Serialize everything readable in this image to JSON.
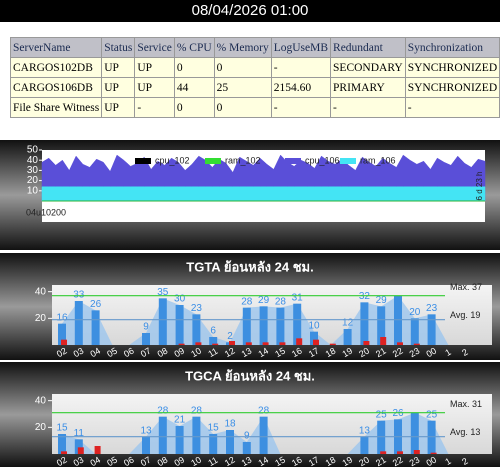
{
  "header": {
    "title": "08/04/2026 01:00"
  },
  "table": {
    "columns": [
      "ServerName",
      "Status",
      "Service",
      "% CPU",
      "% Memory",
      "LogUseMB",
      "Redundant",
      "Synchronization"
    ],
    "rows": [
      [
        "CARGOS102DB",
        "UP",
        "UP",
        "0",
        "0",
        "-",
        "SECONDARY",
        "SYNCHRONIZED"
      ],
      [
        "CARGOS106DB",
        "UP",
        "UP",
        "44",
        "25",
        "2154.60",
        "PRIMARY",
        "SYNCHRONIZED"
      ],
      [
        "File Share Witness",
        "UP",
        "-",
        "0",
        "0",
        "-",
        "-",
        "-"
      ]
    ]
  },
  "chart_data": [
    {
      "type": "area",
      "ylim": [
        0,
        50
      ],
      "yticks": [
        10,
        20,
        30,
        40,
        50
      ],
      "x_label": "04u10200",
      "side_label": "6 d 23 h",
      "series": [
        {
          "name": "cpu_102",
          "color": "#000000",
          "values": [
            0,
            0,
            0,
            0,
            0,
            0,
            0,
            0,
            0,
            0,
            0,
            0,
            0,
            0,
            0,
            0,
            0,
            0,
            0,
            0,
            0,
            0,
            0,
            0,
            0,
            0,
            0,
            0,
            0,
            0,
            0,
            0,
            0,
            0,
            0,
            0,
            0,
            0,
            0,
            0,
            0,
            0,
            0,
            0,
            0,
            0,
            0,
            0,
            0,
            0,
            0,
            0,
            0,
            0,
            0,
            0,
            0,
            0,
            0,
            0,
            0,
            0,
            0,
            0,
            0,
            0
          ]
        },
        {
          "name": "ram_102",
          "color": "#33dd33",
          "values": [
            0,
            0,
            0,
            0,
            0,
            0,
            0,
            0,
            0,
            0,
            0,
            0,
            0,
            0,
            0,
            0,
            0,
            0,
            0,
            0,
            0,
            0,
            0,
            0,
            0,
            0,
            0,
            0,
            0,
            0,
            0,
            0,
            0,
            0,
            0,
            0,
            0,
            0,
            0,
            0,
            0,
            0,
            0,
            0,
            0,
            0,
            0,
            0,
            0,
            0,
            0,
            0,
            0,
            0,
            0,
            0,
            0,
            0,
            0,
            0,
            0,
            0,
            0,
            0,
            0,
            0
          ]
        },
        {
          "name": "cpu_106",
          "color": "#5a4fd8",
          "values": [
            38,
            42,
            35,
            40,
            30,
            44,
            36,
            33,
            41,
            38,
            29,
            45,
            40,
            34,
            37,
            43,
            31,
            39,
            35,
            42,
            38,
            30,
            36,
            44,
            40,
            33,
            41,
            37,
            28,
            43,
            39,
            35,
            42,
            36,
            31,
            45,
            38,
            34,
            40,
            37,
            32,
            44,
            39,
            36,
            41,
            35,
            30,
            43,
            38,
            34,
            42,
            37,
            33,
            45,
            40,
            36,
            39,
            31,
            42,
            38,
            35,
            44,
            37,
            33,
            41,
            39
          ]
        },
        {
          "name": "ram_106",
          "color": "#44e4f4",
          "values": [
            14,
            14,
            14,
            14,
            14,
            14,
            14,
            14,
            14,
            14,
            14,
            14,
            14,
            14,
            14,
            14,
            14,
            14,
            14,
            14,
            14,
            14,
            14,
            14,
            14,
            14,
            14,
            14,
            14,
            14,
            14,
            14,
            14,
            14,
            14,
            14,
            14,
            14,
            14,
            14,
            14,
            14,
            14,
            14,
            14,
            14,
            14,
            14,
            14,
            14,
            14,
            14,
            14,
            14,
            14,
            14,
            14,
            14,
            14,
            14,
            14,
            14,
            14,
            14,
            14,
            14
          ]
        }
      ]
    },
    {
      "type": "bar",
      "title": "TGTA ย้อนหลัง 24 ชม.",
      "ylim": [
        0,
        45
      ],
      "yticks": [
        20,
        40
      ],
      "categories": [
        "02",
        "03",
        "04",
        "05",
        "06",
        "07",
        "08",
        "09",
        "10",
        "11",
        "12",
        "13",
        "14",
        "15",
        "16",
        "17",
        "18",
        "19",
        "20",
        "21",
        "22",
        "23",
        "00",
        "1",
        "2"
      ],
      "series": [
        {
          "color": "#3d8fe0",
          "values": [
            16,
            33,
            26,
            0,
            0,
            9,
            35,
            30,
            23,
            6,
            2,
            28,
            29,
            28,
            31,
            10,
            0,
            12,
            32,
            29,
            37,
            20,
            23,
            0,
            0
          ],
          "value_labels": [
            "16",
            "33",
            "26",
            null,
            null,
            "9",
            "35",
            "30",
            "23",
            "6",
            "2",
            "28",
            "29",
            "28",
            "31",
            "10",
            null,
            "12",
            "32",
            "29",
            null,
            "20",
            "23",
            null,
            null
          ]
        },
        {
          "color": "#dd2222",
          "values": [
            4,
            0,
            0,
            0,
            0,
            0,
            0,
            1,
            2,
            1,
            3,
            2,
            2,
            2,
            5,
            4,
            1,
            0,
            3,
            6,
            2,
            1,
            0,
            0,
            0
          ]
        }
      ],
      "max_line": {
        "value": 37,
        "label": "Max. 37",
        "color": "#33cc33"
      },
      "avg_line": {
        "value": 19,
        "label": "Avg. 19",
        "color": "#6699cc"
      }
    },
    {
      "type": "bar",
      "title": "TGCA ย้อนหลัง 24 ชม.",
      "ylim": [
        0,
        45
      ],
      "yticks": [
        20,
        40
      ],
      "categories": [
        "02",
        "03",
        "04",
        "05",
        "06",
        "07",
        "08",
        "09",
        "10",
        "11",
        "12",
        "13",
        "14",
        "15",
        "16",
        "17",
        "18",
        "19",
        "20",
        "21",
        "22",
        "23",
        "00",
        "1",
        "2"
      ],
      "series": [
        {
          "color": "#3d8fe0",
          "values": [
            15,
            11,
            0,
            0,
            0,
            13,
            28,
            21,
            28,
            15,
            18,
            9,
            28,
            0,
            0,
            0,
            0,
            0,
            13,
            25,
            26,
            31,
            25,
            0,
            0
          ],
          "value_labels": [
            "15",
            "11",
            null,
            null,
            null,
            "13",
            "28",
            "21",
            "28",
            "15",
            "18",
            "9",
            "28",
            null,
            null,
            null,
            null,
            null,
            "13",
            "25",
            "26",
            null,
            "25",
            null,
            null
          ]
        },
        {
          "color": "#dd2222",
          "values": [
            2,
            5,
            6,
            0,
            0,
            0,
            0,
            0,
            0,
            0,
            0,
            0,
            0,
            0,
            0,
            0,
            0,
            0,
            0,
            2,
            2,
            3,
            1,
            0,
            0
          ]
        }
      ],
      "max_line": {
        "value": 31,
        "label": "Max. 31",
        "color": "#33cc33"
      },
      "avg_line": {
        "value": 13,
        "label": "Avg. 13",
        "color": "#6699cc"
      }
    }
  ]
}
